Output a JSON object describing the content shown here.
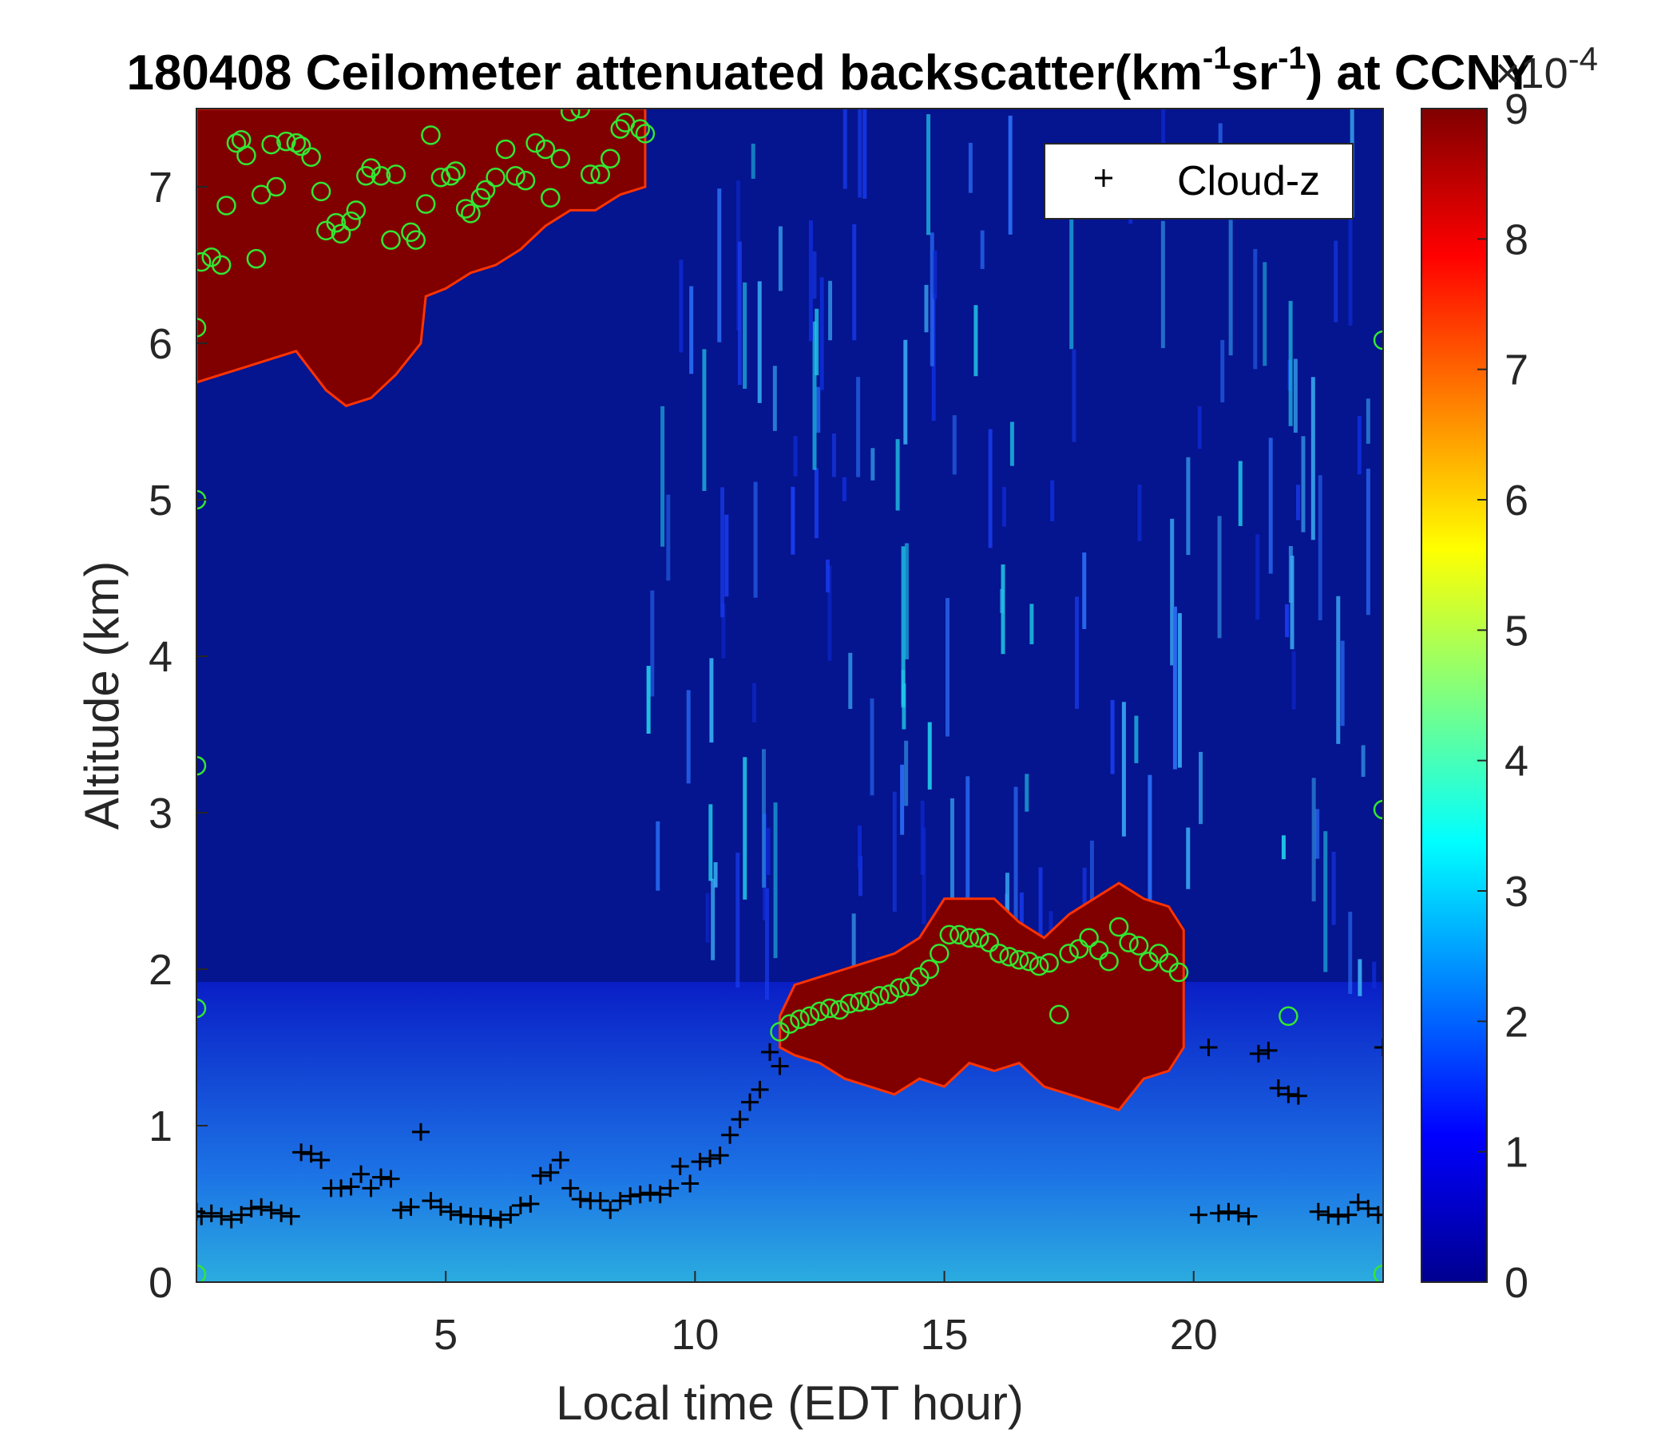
{
  "chart_data": {
    "type": "heatmap",
    "title": {
      "date": "180408",
      "main": "Ceilometer attenuated backscatter(km",
      "sup1": "-1",
      "mid": "sr",
      "sup2": "-1",
      "end": ") at CCNY"
    },
    "xlabel": "Local time (EDT hour)",
    "ylabel": "Altitude (km)",
    "xlim": [
      0,
      23.8
    ],
    "ylim": [
      0,
      7.5
    ],
    "xticks": [
      "5",
      "10",
      "15",
      "20"
    ],
    "xtick_values": [
      5,
      10,
      15,
      20
    ],
    "yticks": [
      "0",
      "1",
      "2",
      "3",
      "4",
      "5",
      "6",
      "7"
    ],
    "ytick_values": [
      0,
      1,
      2,
      3,
      4,
      5,
      6,
      7
    ],
    "colorbar": {
      "colormap": "jet",
      "range": [
        0,
        9
      ],
      "ticks": [
        "0",
        "1",
        "2",
        "3",
        "4",
        "5",
        "6",
        "7",
        "8",
        "9"
      ],
      "tick_values": [
        0,
        1,
        2,
        3,
        4,
        5,
        6,
        7,
        8,
        9
      ],
      "exponent_label": "×10",
      "exponent": "-4"
    },
    "legend": {
      "position": "top-right",
      "entries": [
        {
          "name": "Cloud-z",
          "marker": "+",
          "color": "#000000"
        }
      ]
    },
    "cloud_layers": [
      {
        "description_color": "#800000",
        "top": 7.5,
        "base": [
          [
            0,
            5.75
          ],
          [
            0.5,
            5.8
          ],
          [
            1,
            5.85
          ],
          [
            1.5,
            5.9
          ],
          [
            2,
            5.95
          ],
          [
            2.6,
            5.7
          ],
          [
            3,
            5.6
          ],
          [
            3.5,
            5.65
          ],
          [
            4,
            5.8
          ],
          [
            4.5,
            6.0
          ],
          [
            4.6,
            6.3
          ],
          [
            5,
            6.35
          ],
          [
            5.5,
            6.45
          ],
          [
            6,
            6.5
          ],
          [
            6.5,
            6.6
          ],
          [
            7,
            6.75
          ],
          [
            7.5,
            6.85
          ],
          [
            8,
            6.85
          ],
          [
            8.5,
            6.95
          ],
          [
            9,
            7.0
          ]
        ]
      },
      {
        "description_color": "#800000",
        "top": [
          [
            11.7,
            1.7
          ],
          [
            12,
            1.9
          ],
          [
            12.5,
            1.95
          ],
          [
            13,
            2.0
          ],
          [
            13.5,
            2.05
          ],
          [
            14,
            2.1
          ],
          [
            14.5,
            2.2
          ],
          [
            15,
            2.45
          ],
          [
            16,
            2.45
          ],
          [
            16.5,
            2.3
          ],
          [
            17,
            2.2
          ],
          [
            17.5,
            2.35
          ],
          [
            18,
            2.45
          ],
          [
            18.5,
            2.55
          ],
          [
            19,
            2.45
          ],
          [
            19.5,
            2.4
          ],
          [
            19.8,
            2.25
          ]
        ],
        "base": [
          [
            11.7,
            1.5
          ],
          [
            12,
            1.45
          ],
          [
            12.5,
            1.4
          ],
          [
            13,
            1.3
          ],
          [
            13.5,
            1.25
          ],
          [
            14,
            1.2
          ],
          [
            14.5,
            1.3
          ],
          [
            15,
            1.25
          ],
          [
            15.5,
            1.4
          ],
          [
            16,
            1.35
          ],
          [
            16.5,
            1.4
          ],
          [
            17,
            1.25
          ],
          [
            17.5,
            1.2
          ],
          [
            18,
            1.15
          ],
          [
            18.5,
            1.1
          ],
          [
            19,
            1.3
          ],
          [
            19.5,
            1.35
          ],
          [
            19.8,
            1.5
          ]
        ]
      }
    ],
    "pbl_green_circles": [
      [
        0.1,
        6.52
      ],
      [
        0.3,
        6.55
      ],
      [
        0.5,
        6.5
      ],
      [
        0.6,
        6.88
      ],
      [
        0.8,
        7.28
      ],
      [
        0.9,
        7.3
      ],
      [
        1,
        7.2
      ],
      [
        1.2,
        6.54
      ],
      [
        1.3,
        6.95
      ],
      [
        1.5,
        7.27
      ],
      [
        1.6,
        7.0
      ],
      [
        1.8,
        7.29
      ],
      [
        2.0,
        7.28
      ],
      [
        2.1,
        7.26
      ],
      [
        2.3,
        7.19
      ],
      [
        2.5,
        6.97
      ],
      [
        2.6,
        6.72
      ],
      [
        2.8,
        6.77
      ],
      [
        2.9,
        6.7
      ],
      [
        3.1,
        6.78
      ],
      [
        3.2,
        6.85
      ],
      [
        3.4,
        7.07
      ],
      [
        3.5,
        7.12
      ],
      [
        3.7,
        7.07
      ],
      [
        3.9,
        6.66
      ],
      [
        4.0,
        7.08
      ],
      [
        4.3,
        6.71
      ],
      [
        4.4,
        6.66
      ],
      [
        4.6,
        6.89
      ],
      [
        4.7,
        7.33
      ],
      [
        4.9,
        7.06
      ],
      [
        5.1,
        7.07
      ],
      [
        5.2,
        7.1
      ],
      [
        5.4,
        6.86
      ],
      [
        5.5,
        6.83
      ],
      [
        5.7,
        6.93
      ],
      [
        5.8,
        6.98
      ],
      [
        6.0,
        7.06
      ],
      [
        6.2,
        7.24
      ],
      [
        6.4,
        7.07
      ],
      [
        6.6,
        7.04
      ],
      [
        6.8,
        7.28
      ],
      [
        7.0,
        7.24
      ],
      [
        7.1,
        6.93
      ],
      [
        7.3,
        7.18
      ],
      [
        7.5,
        7.48
      ],
      [
        7.7,
        7.5
      ],
      [
        7.9,
        7.08
      ],
      [
        8.1,
        7.08
      ],
      [
        8.3,
        7.18
      ],
      [
        8.5,
        7.37
      ],
      [
        8.6,
        7.41
      ],
      [
        8.9,
        7.37
      ],
      [
        9.0,
        7.34
      ],
      [
        11.7,
        1.6
      ],
      [
        11.9,
        1.65
      ],
      [
        12.1,
        1.68
      ],
      [
        12.3,
        1.7
      ],
      [
        12.5,
        1.73
      ],
      [
        12.7,
        1.75
      ],
      [
        12.9,
        1.74
      ],
      [
        13.1,
        1.78
      ],
      [
        13.3,
        1.79
      ],
      [
        13.5,
        1.8
      ],
      [
        13.7,
        1.83
      ],
      [
        13.9,
        1.84
      ],
      [
        14.1,
        1.88
      ],
      [
        14.3,
        1.89
      ],
      [
        14.5,
        1.95
      ],
      [
        14.7,
        2.0
      ],
      [
        14.9,
        2.1
      ],
      [
        15.1,
        2.22
      ],
      [
        15.3,
        2.22
      ],
      [
        15.5,
        2.2
      ],
      [
        15.7,
        2.2
      ],
      [
        15.9,
        2.17
      ],
      [
        16.1,
        2.1
      ],
      [
        16.3,
        2.08
      ],
      [
        16.5,
        2.06
      ],
      [
        16.7,
        2.05
      ],
      [
        16.9,
        2.02
      ],
      [
        17.1,
        2.04
      ],
      [
        17.3,
        1.71
      ],
      [
        17.5,
        2.1
      ],
      [
        17.7,
        2.13
      ],
      [
        17.9,
        2.2
      ],
      [
        18.1,
        2.12
      ],
      [
        18.3,
        2.05
      ],
      [
        18.5,
        2.27
      ],
      [
        18.7,
        2.17
      ],
      [
        18.9,
        2.15
      ],
      [
        19.1,
        2.05
      ],
      [
        19.3,
        2.1
      ],
      [
        19.5,
        2.04
      ],
      [
        19.7,
        1.98
      ],
      [
        21.9,
        1.7
      ],
      [
        0,
        0.05
      ],
      [
        23.8,
        0.05
      ],
      [
        0,
        3.3
      ],
      [
        23.8,
        3.02
      ],
      [
        23.8,
        6.02
      ],
      [
        0,
        1.75
      ],
      [
        0,
        6.1
      ],
      [
        0,
        5.0
      ]
    ],
    "cloud_z_plus": [
      [
        0,
        0.45
      ],
      [
        0.1,
        0.42
      ],
      [
        0.3,
        0.44
      ],
      [
        0.5,
        0.42
      ],
      [
        0.7,
        0.4
      ],
      [
        0.9,
        0.43
      ],
      [
        1.1,
        0.47
      ],
      [
        1.3,
        0.48
      ],
      [
        1.5,
        0.46
      ],
      [
        1.7,
        0.44
      ],
      [
        1.9,
        0.42
      ],
      [
        2.1,
        0.83
      ],
      [
        2.3,
        0.82
      ],
      [
        2.5,
        0.78
      ],
      [
        2.7,
        0.6
      ],
      [
        2.9,
        0.6
      ],
      [
        3.1,
        0.61
      ],
      [
        3.3,
        0.69
      ],
      [
        3.5,
        0.6
      ],
      [
        3.7,
        0.67
      ],
      [
        3.9,
        0.66
      ],
      [
        4.1,
        0.46
      ],
      [
        4.3,
        0.48
      ],
      [
        4.5,
        0.96
      ],
      [
        4.7,
        0.52
      ],
      [
        4.9,
        0.48
      ],
      [
        5.1,
        0.45
      ],
      [
        5.3,
        0.43
      ],
      [
        5.5,
        0.42
      ],
      [
        5.7,
        0.42
      ],
      [
        5.9,
        0.41
      ],
      [
        6.1,
        0.4
      ],
      [
        6.3,
        0.43
      ],
      [
        6.5,
        0.49
      ],
      [
        6.7,
        0.5
      ],
      [
        6.9,
        0.68
      ],
      [
        7.1,
        0.7
      ],
      [
        7.3,
        0.78
      ],
      [
        7.5,
        0.6
      ],
      [
        7.7,
        0.53
      ],
      [
        7.9,
        0.52
      ],
      [
        8.1,
        0.52
      ],
      [
        8.3,
        0.46
      ],
      [
        8.5,
        0.52
      ],
      [
        8.7,
        0.55
      ],
      [
        8.9,
        0.56
      ],
      [
        9.1,
        0.57
      ],
      [
        9.3,
        0.56
      ],
      [
        9.5,
        0.6
      ],
      [
        9.7,
        0.74
      ],
      [
        9.9,
        0.63
      ],
      [
        10.1,
        0.77
      ],
      [
        10.3,
        0.79
      ],
      [
        10.5,
        0.81
      ],
      [
        10.7,
        0.94
      ],
      [
        10.9,
        1.04
      ],
      [
        11.1,
        1.15
      ],
      [
        11.3,
        1.23
      ],
      [
        11.5,
        1.47
      ],
      [
        11.7,
        1.38
      ],
      [
        20.1,
        0.43
      ],
      [
        20.3,
        1.5
      ],
      [
        20.5,
        0.44
      ],
      [
        20.7,
        0.45
      ],
      [
        20.9,
        0.44
      ],
      [
        21.1,
        0.42
      ],
      [
        21.3,
        1.46
      ],
      [
        21.5,
        1.48
      ],
      [
        21.7,
        1.24
      ],
      [
        21.9,
        1.2
      ],
      [
        22.1,
        1.19
      ],
      [
        22.5,
        0.45
      ],
      [
        22.7,
        0.43
      ],
      [
        22.9,
        0.42
      ],
      [
        23.1,
        0.43
      ],
      [
        23.3,
        0.51
      ],
      [
        23.5,
        0.47
      ],
      [
        23.7,
        0.43
      ],
      [
        23.8,
        1.5
      ]
    ]
  }
}
